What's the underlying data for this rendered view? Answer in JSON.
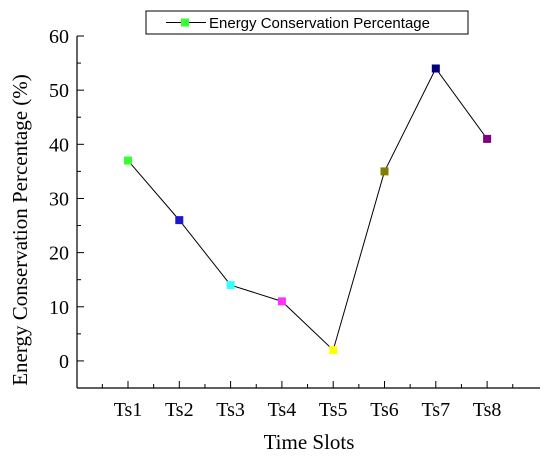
{
  "chart_data": {
    "type": "line",
    "title": "",
    "xlabel": "Time Slots",
    "ylabel": "Energy Conservation Percentage (%)",
    "categories": [
      "Ts1",
      "Ts2",
      "Ts3",
      "Ts4",
      "Ts5",
      "Ts6",
      "Ts7",
      "Ts8"
    ],
    "series": [
      {
        "name": "Energy Conservation Percentage",
        "values": [
          37,
          26,
          14,
          11,
          2,
          35,
          54,
          41
        ],
        "line_color": "#000000",
        "legend_marker_color": "#33ff33"
      }
    ],
    "point_colors": [
      "#33ff33",
      "#1a1acc",
      "#33ffff",
      "#ff33ff",
      "#ffff00",
      "#808000",
      "#000080",
      "#800080"
    ],
    "yticks": [
      "0",
      "10",
      "20",
      "30",
      "40",
      "50",
      "60"
    ],
    "ylim": [
      -5,
      60
    ],
    "grid": false,
    "legend_position": "top-right"
  }
}
